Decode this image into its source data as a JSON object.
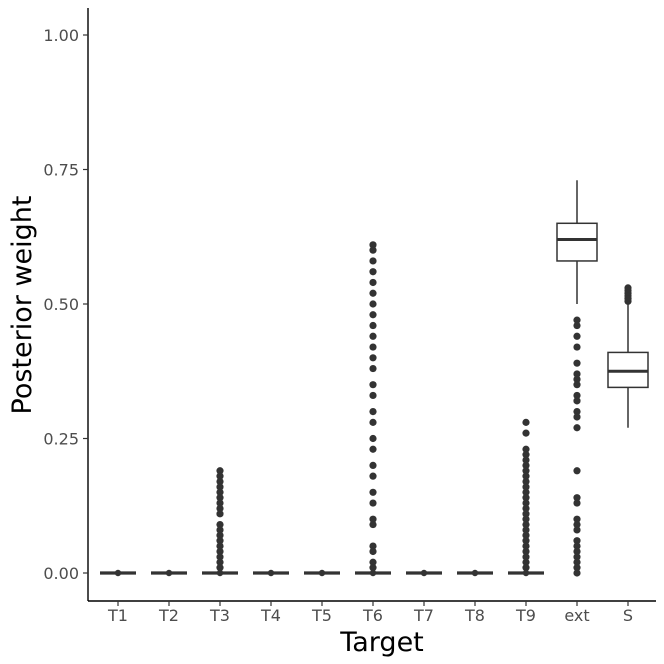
{
  "chart_data": {
    "type": "boxplot",
    "xlabel": "Target",
    "ylabel": "Posterior weight",
    "ylim": [
      -0.05,
      1.05
    ],
    "y_ticks": [
      0.0,
      0.25,
      0.5,
      0.75,
      1.0
    ],
    "y_tick_labels": [
      "0.00",
      "0.25",
      "0.50",
      "0.75",
      "1.00"
    ],
    "categories": [
      "T1",
      "T2",
      "T3",
      "T4",
      "T5",
      "T6",
      "T7",
      "T8",
      "T9",
      "ext",
      "S"
    ],
    "boxes": [
      {
        "category": "T1",
        "q1": 0.0,
        "median": 0.0,
        "q3": 0.0,
        "whisker_low": 0.0,
        "whisker_high": 0.0,
        "outliers": []
      },
      {
        "category": "T2",
        "q1": 0.0,
        "median": 0.0,
        "q3": 0.0,
        "whisker_low": 0.0,
        "whisker_high": 0.0,
        "outliers": []
      },
      {
        "category": "T3",
        "q1": 0.0,
        "median": 0.0,
        "q3": 0.0,
        "whisker_low": 0.0,
        "whisker_high": 0.0,
        "outliers": [
          0.19,
          0.18,
          0.17,
          0.16,
          0.15,
          0.14,
          0.13,
          0.12,
          0.11,
          0.09,
          0.08,
          0.07,
          0.06,
          0.05,
          0.04,
          0.03,
          0.02,
          0.01
        ]
      },
      {
        "category": "T4",
        "q1": 0.0,
        "median": 0.0,
        "q3": 0.0,
        "whisker_low": 0.0,
        "whisker_high": 0.0,
        "outliers": []
      },
      {
        "category": "T5",
        "q1": 0.0,
        "median": 0.0,
        "q3": 0.0,
        "whisker_low": 0.0,
        "whisker_high": 0.0,
        "outliers": []
      },
      {
        "category": "T6",
        "q1": 0.0,
        "median": 0.0,
        "q3": 0.0,
        "whisker_low": 0.0,
        "whisker_high": 0.0,
        "outliers": [
          0.61,
          0.6,
          0.58,
          0.56,
          0.54,
          0.52,
          0.5,
          0.48,
          0.46,
          0.44,
          0.42,
          0.4,
          0.38,
          0.35,
          0.33,
          0.3,
          0.28,
          0.25,
          0.23,
          0.2,
          0.18,
          0.15,
          0.13,
          0.1,
          0.09,
          0.05,
          0.04,
          0.02,
          0.01
        ]
      },
      {
        "category": "T7",
        "q1": 0.0,
        "median": 0.0,
        "q3": 0.0,
        "whisker_low": 0.0,
        "whisker_high": 0.0,
        "outliers": []
      },
      {
        "category": "T8",
        "q1": 0.0,
        "median": 0.0,
        "q3": 0.0,
        "whisker_low": 0.0,
        "whisker_high": 0.0,
        "outliers": []
      },
      {
        "category": "T9",
        "q1": 0.0,
        "median": 0.0,
        "q3": 0.0,
        "whisker_low": 0.0,
        "whisker_high": 0.0,
        "outliers": [
          0.28,
          0.26,
          0.23,
          0.22,
          0.21,
          0.2,
          0.19,
          0.18,
          0.17,
          0.16,
          0.15,
          0.14,
          0.13,
          0.12,
          0.11,
          0.1,
          0.09,
          0.08,
          0.07,
          0.06,
          0.05,
          0.04,
          0.03,
          0.02,
          0.01
        ]
      },
      {
        "category": "ext",
        "q1": 0.58,
        "median": 0.62,
        "q3": 0.65,
        "whisker_low": 0.5,
        "whisker_high": 0.73,
        "outliers": [
          0.47,
          0.46,
          0.44,
          0.42,
          0.39,
          0.37,
          0.36,
          0.35,
          0.33,
          0.32,
          0.3,
          0.29,
          0.27,
          0.19,
          0.14,
          0.13,
          0.1,
          0.09,
          0.08,
          0.06,
          0.05,
          0.04,
          0.03,
          0.02,
          0.01,
          0.0
        ]
      },
      {
        "category": "S",
        "q1": 0.345,
        "median": 0.375,
        "q3": 0.41,
        "whisker_low": 0.27,
        "whisker_high": 0.5,
        "outliers": [
          0.53,
          0.525,
          0.52,
          0.515,
          0.51,
          0.505
        ]
      }
    ],
    "style": {
      "box_fill": "#ffffff",
      "line_color": "#333333",
      "point_color": "#333333",
      "axis_color": "#000000",
      "tick_label_color": "#4d4d4d",
      "grid": false
    }
  }
}
